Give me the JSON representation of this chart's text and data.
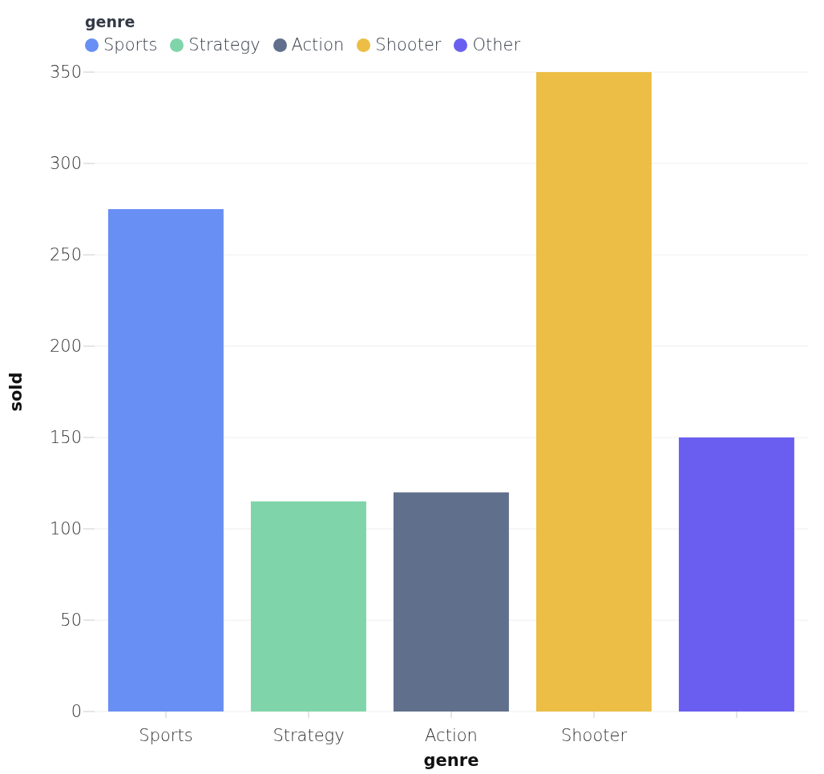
{
  "chart_data": {
    "type": "bar",
    "xlabel": "genre",
    "ylabel": "sold",
    "legend_title": "genre",
    "categories": [
      "Sports",
      "Strategy",
      "Action",
      "Shooter",
      null
    ],
    "series": [
      {
        "name": "Sports",
        "color": "#688ff4",
        "values": [
          275,
          null,
          null,
          null,
          null
        ]
      },
      {
        "name": "Strategy",
        "color": "#7fd5a9",
        "values": [
          null,
          115,
          null,
          null,
          null
        ]
      },
      {
        "name": "Action",
        "color": "#606f8c",
        "values": [
          null,
          null,
          120,
          null,
          null
        ]
      },
      {
        "name": "Shooter",
        "color": "#ecbe45",
        "values": [
          null,
          null,
          null,
          350,
          null
        ]
      },
      {
        "name": "Other",
        "color": "#6a5ef0",
        "values": [
          null,
          null,
          null,
          null,
          150
        ]
      }
    ],
    "ylim": [
      0,
      350
    ],
    "yticks": [
      0,
      50,
      100,
      150,
      200,
      250,
      300,
      350
    ],
    "grid": "y",
    "legend": "top left"
  }
}
